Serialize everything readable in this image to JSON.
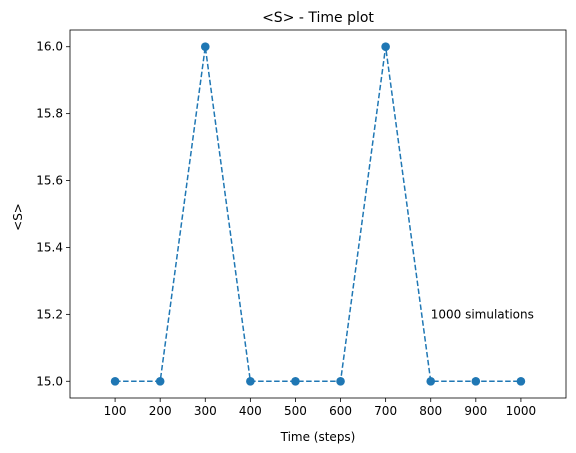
{
  "chart_data": {
    "type": "line",
    "title": "<S> - Time plot",
    "xlabel": "Time (steps)",
    "ylabel": "<S>",
    "x": [
      100,
      200,
      300,
      400,
      500,
      600,
      700,
      800,
      900,
      1000
    ],
    "series": [
      {
        "values": [
          15.0,
          15.0,
          16.0,
          15.0,
          15.0,
          15.0,
          16.0,
          15.0,
          15.0,
          15.0
        ],
        "color": "#1f77b4",
        "line_style": "dashed",
        "marker": "circle"
      }
    ],
    "xticks": [
      "100",
      "200",
      "300",
      "400",
      "500",
      "600",
      "700",
      "800",
      "900",
      "1000"
    ],
    "yticks": [
      "15.0",
      "15.2",
      "15.4",
      "15.6",
      "15.8",
      "16.0"
    ],
    "xlim": [
      0,
      1100
    ],
    "ylim": [
      14.95,
      16.05
    ],
    "grid": false,
    "annotations": [
      {
        "text": "1000 simulations",
        "x": 800,
        "y": 15.2
      }
    ]
  }
}
